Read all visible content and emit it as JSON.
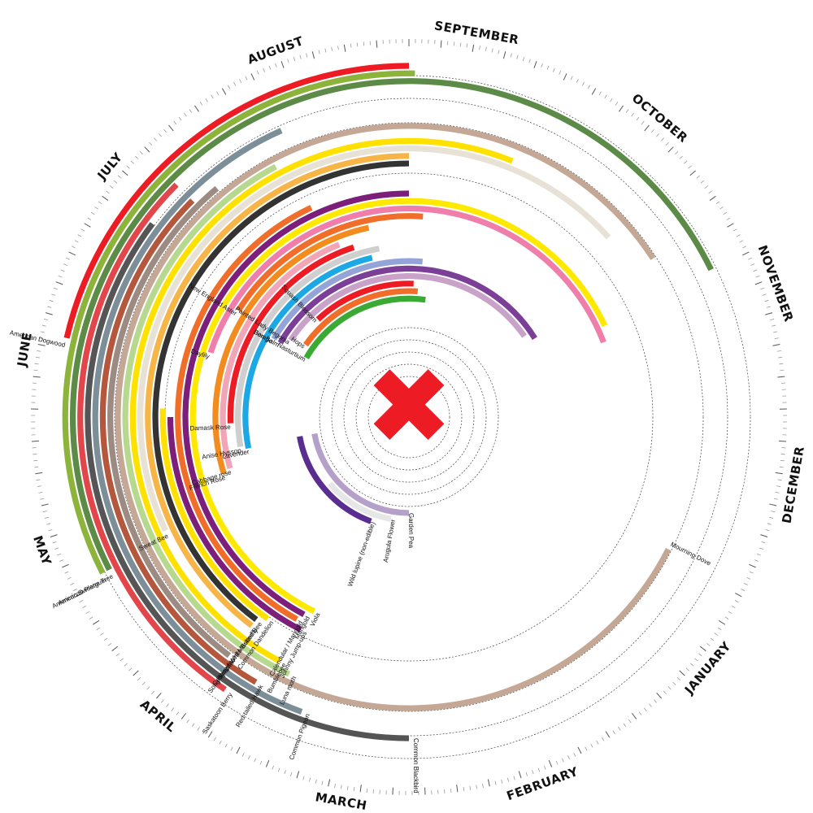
{
  "chart_data": {
    "type": "radial-timeline",
    "months": [
      "SEPTEMBER",
      "OCTOBER",
      "NOVEMBER",
      "DECEMBER",
      "JANUARY",
      "FEBRUARY",
      "MARCH",
      "APRIL",
      "MAY",
      "JUNE",
      "JULY",
      "AUGUST"
    ],
    "center_marker": "✖",
    "center_marker_color": "#ED1C24",
    "series": [
      {
        "name": "American Dogwood",
        "start": -77,
        "end": 0,
        "color": "#ED1C24"
      },
      {
        "name": "American Sweetgum",
        "start": -117,
        "end": 1,
        "color": "#8DB43A"
      },
      {
        "name": "American Plane Tree",
        "start": -117,
        "end": 64,
        "color": "#5C8A47"
      },
      {
        "name": "Saskatoon Berry",
        "start": -146,
        "end": -45,
        "color": "#E2454A"
      },
      {
        "name": "Common Blackbird",
        "start": -180,
        "end": -53,
        "color": "#555555"
      },
      {
        "name": "Common Pigeon",
        "start": -160,
        "end": -24,
        "color": "#7C8E98"
      },
      {
        "name": "Red-tailed Hawk",
        "start": -150,
        "end": -45,
        "color": "#B5573C"
      },
      {
        "name": "Song Sparrow",
        "start": -143,
        "end": -40,
        "color": "#9C8B82"
      },
      {
        "name": "Mourning Dove",
        "start": -243,
        "end": 57,
        "color": "#C4A895"
      },
      {
        "name": "Luna moth",
        "start": -155,
        "end": -28,
        "color": "#B7D88F"
      },
      {
        "name": "Bumblebee",
        "start": -152,
        "end": 22,
        "color": "#FFE100"
      },
      {
        "name": "Sweat Bee",
        "start": -115,
        "end": 48,
        "color": "#E8E1D6"
      },
      {
        "name": "Cabbage White Butterfly",
        "start": -143,
        "end": 0,
        "color": "#F7B447"
      },
      {
        "name": "Hairy-faced Masked Bee",
        "start": -143,
        "end": 0,
        "color": "#333333"
      },
      {
        "name": "Common Dandelion",
        "start": -145,
        "end": -88,
        "color": "#FFE100"
      },
      {
        "name": "Johnny Jump-ups",
        "start": -153,
        "end": -90,
        "color": "#7B1F7A"
      },
      {
        "name": "Calendular / Marigold",
        "start": -151,
        "end": -25,
        "color": "#F06E29"
      },
      {
        "name": "Marigold",
        "start": -152,
        "end": 0,
        "color": "#7B1F7A"
      },
      {
        "name": "Viola",
        "start": -154,
        "end": 65,
        "color": "#FFE900"
      },
      {
        "name": "Daylily",
        "start": -72,
        "end": 69,
        "color": "#EF7EAB"
      },
      {
        "name": "New England Aster",
        "start": -58,
        "end": 4,
        "color": "#F06E29"
      },
      {
        "name": "French Rose",
        "start": -107,
        "end": -12,
        "color": "#F28C1E"
      },
      {
        "name": "Cabbage rose",
        "start": -106,
        "end": -22,
        "color": "#F3A5B8"
      },
      {
        "name": "Damask Rose",
        "start": -92,
        "end": -18,
        "color": "#ED1C24"
      },
      {
        "name": "Anise Hyssop",
        "start": -100,
        "end": -10,
        "color": "#CFCFCF"
      },
      {
        "name": "Lavender",
        "start": -101,
        "end": -13,
        "color": "#1CA8E4"
      },
      {
        "name": "Borage",
        "start": -60,
        "end": 5,
        "color": "#94A4D8"
      },
      {
        "name": "Bee Balm",
        "start": -60,
        "end": 58,
        "color": "#7B3F98"
      },
      {
        "name": "Painted Lady Begonia",
        "start": -57,
        "end": 55,
        "color": "#C8A2C8"
      },
      {
        "name": "Squash Blossom",
        "start": -43,
        "end": 2,
        "color": "#ED1C24"
      },
      {
        "name": "Hops",
        "start": -55,
        "end": 4,
        "color": "#F06E29"
      },
      {
        "name": "Nasturtium",
        "start": -60,
        "end": 8,
        "color": "#3AAA35"
      },
      {
        "name": "Wild lupine (non-edible)",
        "start": -160,
        "end": -100,
        "color": "#5A2D91"
      },
      {
        "name": "Arugula Flower",
        "start": -170,
        "end": -130,
        "color": "#E6E6E6"
      },
      {
        "name": "Garden Pea",
        "start": -180,
        "end": -100,
        "color": "#B4A0C8"
      }
    ]
  }
}
